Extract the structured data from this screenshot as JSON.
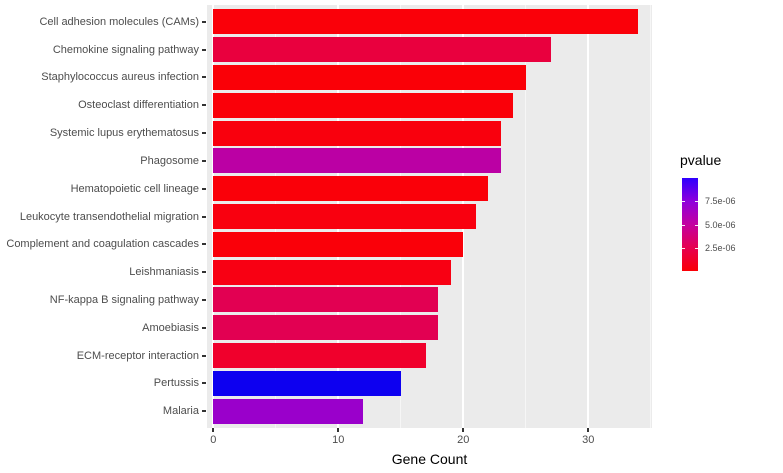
{
  "chart_data": {
    "type": "bar",
    "orientation": "horizontal",
    "title": "",
    "xlabel": "Gene Count",
    "ylabel": "",
    "categories": [
      "Cell adhesion molecules (CAMs)",
      "Chemokine signaling pathway",
      "Staphylococcus aureus infection",
      "Osteoclast differentiation",
      "Systemic lupus erythematosus",
      "Phagosome",
      "Hematopoietic cell lineage",
      "Leukocyte transendothelial migration",
      "Complement and coagulation cascades",
      "Leishmaniasis",
      "NF-kappa B signaling pathway",
      "Amoebiasis",
      "ECM-receptor interaction",
      "Pertussis",
      "Malaria"
    ],
    "values": [
      34,
      27,
      25,
      24,
      23,
      23,
      22,
      21,
      20,
      19,
      18,
      18,
      17,
      15,
      12
    ],
    "bar_colors": [
      "#FA0009",
      "#E9003E",
      "#FA0007",
      "#FA0009",
      "#F9000D",
      "#BB00A4",
      "#FA0009",
      "#F9000F",
      "#FA0009",
      "#F80013",
      "#E20052",
      "#E20052",
      "#F0002C",
      "#0D00F0",
      "#9A00CB"
    ],
    "x_ticks": [
      0,
      10,
      20,
      30
    ],
    "x_minor_ticks": [
      5,
      15,
      25,
      35
    ],
    "xlim": [
      -0.5,
      35.1
    ],
    "grid": true,
    "panel_bg": "#EBEBEB",
    "grid_color": "#FFFFFF",
    "axis_text_color": "#4D4D4D",
    "axis_title_color": "#000000",
    "legend": {
      "title": "pvalue",
      "position": "right",
      "labels": [
        "7.5e-06",
        "5.0e-06",
        "2.5e-06"
      ],
      "tick_fractions_from_top": [
        0.25,
        0.5,
        0.75
      ],
      "gradient_top_to_bottom": [
        "#2E00FF",
        "#8E00DC",
        "#C300A0",
        "#E60050",
        "#FA0005"
      ]
    }
  }
}
